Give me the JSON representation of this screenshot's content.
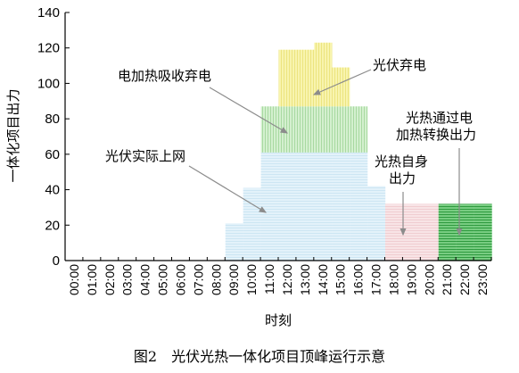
{
  "chart_data": {
    "type": "bar",
    "xlabel": "时刻",
    "ylabel": "一体化项目出力",
    "ylim": [
      0,
      140
    ],
    "yticks": [
      0,
      20,
      40,
      60,
      80,
      100,
      120,
      140
    ],
    "categories": [
      "00:00",
      "01:00",
      "02:00",
      "03:00",
      "04:00",
      "05:00",
      "06:00",
      "07:00",
      "08:00",
      "09:00",
      "10:00",
      "11:00",
      "12:00",
      "13:00",
      "14:00",
      "15:00",
      "16:00",
      "17:00",
      "18:00",
      "19:00",
      "20:00",
      "21:00",
      "22:00",
      "23:00"
    ],
    "series": [
      {
        "name": "光伏实际上网",
        "color": "#dff0f8",
        "hatch": "#c7e4f2",
        "values": [
          0,
          0,
          0,
          0,
          0,
          0,
          0,
          0,
          0,
          21,
          41,
          61,
          61,
          61,
          61,
          61,
          61,
          42,
          0,
          0,
          0,
          0,
          0,
          0
        ]
      },
      {
        "name": "电加热吸收弃电",
        "color": "#cdeec9",
        "hatch": "#a9dca4",
        "values": [
          0,
          0,
          0,
          0,
          0,
          0,
          0,
          0,
          0,
          0,
          0,
          26,
          26,
          26,
          26,
          26,
          26,
          0,
          0,
          0,
          0,
          0,
          0,
          0
        ]
      },
      {
        "name": "光伏弃电",
        "color": "#f7f3a4",
        "hatch": "#e9e27a",
        "values": [
          0,
          0,
          0,
          0,
          0,
          0,
          0,
          0,
          0,
          0,
          0,
          0,
          32,
          32,
          36,
          22,
          0,
          0,
          0,
          0,
          0,
          0,
          0,
          0
        ]
      },
      {
        "name": "光热自身出力",
        "color": "#f7e1e3",
        "hatch": "#efc9cd",
        "values": [
          0,
          0,
          0,
          0,
          0,
          0,
          0,
          0,
          0,
          0,
          0,
          0,
          0,
          0,
          0,
          0,
          0,
          0,
          32,
          32,
          32,
          0,
          0,
          0
        ]
      },
      {
        "name": "光热通过电加热转换出力",
        "color": "#5fbf6a",
        "hatch": "#2e9a3e",
        "values": [
          0,
          0,
          0,
          0,
          0,
          0,
          0,
          0,
          0,
          0,
          0,
          0,
          0,
          0,
          0,
          0,
          0,
          0,
          0,
          0,
          0,
          32,
          32,
          32
        ]
      }
    ],
    "annotations": {
      "electric_heating": "电加热吸收弃电",
      "pv_curtail": "光伏弃电",
      "pv_grid": "光伏实际上网",
      "csp_convert_line1": "光热通过电",
      "csp_convert_line2": "加热转换出力",
      "csp_self_line1": "光热自身",
      "csp_self_line2": "出力"
    }
  },
  "caption": "图2　光伏光热一体化项目顶峰运行示意"
}
